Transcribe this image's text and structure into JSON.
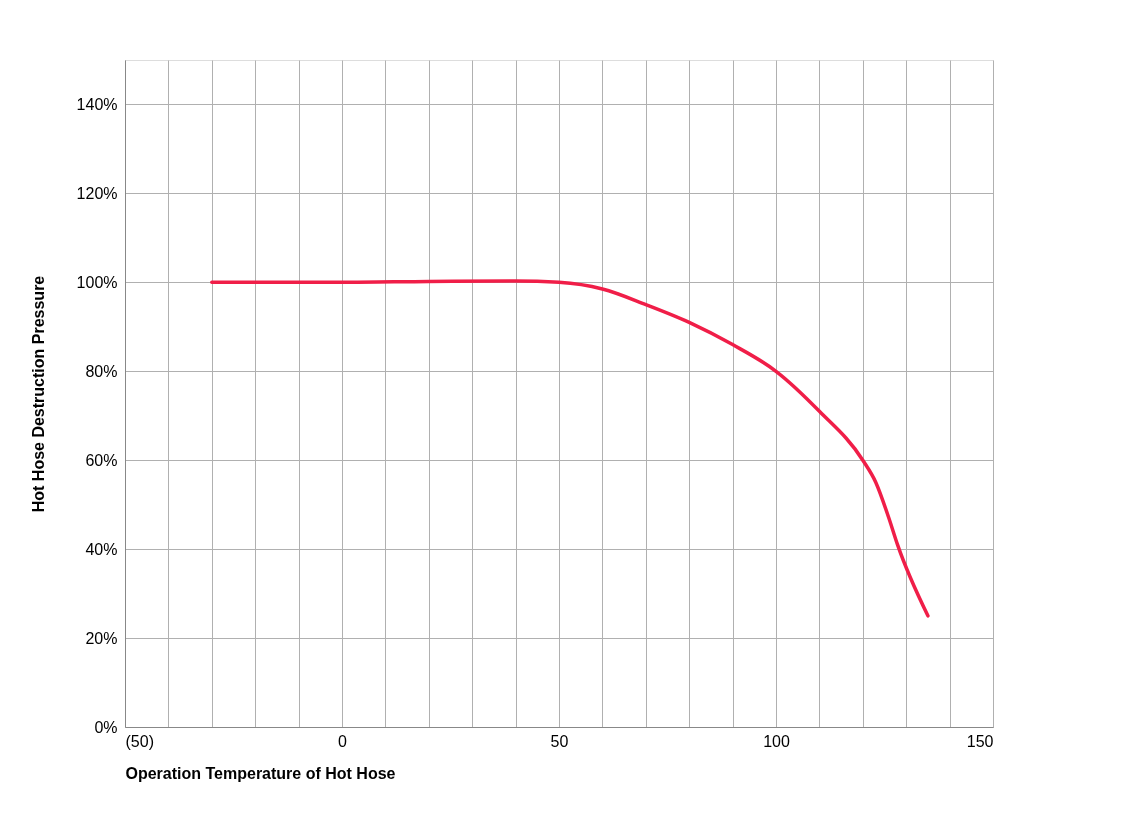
{
  "chart_data": {
    "type": "line",
    "xlabel": "Operation Temperature of Hot Hose",
    "ylabel": "Hot Hose Destruction Pressure",
    "x": [
      -30,
      0,
      20,
      40,
      50,
      60,
      70,
      80,
      90,
      100,
      110,
      120,
      123,
      126,
      128,
      135
    ],
    "series": [
      {
        "color": "#f01e48",
        "values": [
          100,
          100,
          100.2,
          100.3,
          100,
          98.5,
          95,
          91,
          86,
          80,
          71,
          60,
          55,
          47,
          41,
          25
        ]
      }
    ],
    "xlim": [
      -50,
      150
    ],
    "xticks": [
      {
        "value": -50,
        "label": "(50)"
      },
      {
        "value": -40,
        "label": null
      },
      {
        "value": -30,
        "label": null
      },
      {
        "value": -20,
        "label": null
      },
      {
        "value": -10,
        "label": null
      },
      0,
      {
        "value": 10,
        "label": null
      },
      {
        "value": 20,
        "label": null
      },
      {
        "value": 30,
        "label": null
      },
      {
        "value": 40,
        "label": null
      },
      50,
      {
        "value": 60,
        "label": null
      },
      {
        "value": 70,
        "label": null
      },
      {
        "value": 80,
        "label": null
      },
      {
        "value": 90,
        "label": null
      },
      100,
      {
        "value": 110,
        "label": null
      },
      {
        "value": 120,
        "label": null
      },
      {
        "value": 130,
        "label": null
      },
      {
        "value": 140,
        "label": null
      },
      150
    ],
    "ylim": [
      0,
      150
    ],
    "yticks": [
      {
        "value": 0,
        "label": "0%"
      },
      {
        "value": 20,
        "label": "20%"
      },
      {
        "value": 40,
        "label": "40%"
      },
      {
        "value": 60,
        "label": "60%"
      },
      {
        "value": 80,
        "label": "80%"
      },
      {
        "value": 100,
        "label": "100%"
      },
      {
        "value": 120,
        "label": "120%"
      },
      {
        "value": 140,
        "label": "140%"
      }
    ],
    "grid": true,
    "marker": "none",
    "line_style": "solid"
  }
}
